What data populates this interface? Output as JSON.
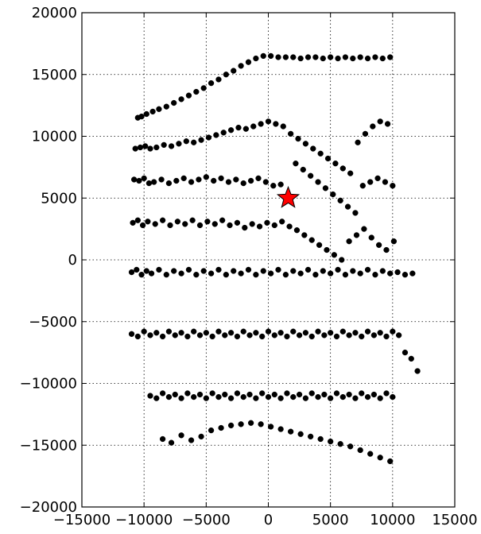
{
  "chart_data": {
    "type": "scatter",
    "title": "",
    "xlabel": "",
    "ylabel": "",
    "xlim": [
      -15000,
      15000
    ],
    "ylim": [
      -20000,
      20000
    ],
    "grid": true,
    "x_ticks": [
      -15000,
      -10000,
      -5000,
      0,
      5000,
      10000,
      15000
    ],
    "x_tick_labels": [
      "−15000",
      "−10000",
      "−5000",
      "0",
      "5000",
      "10000",
      "15000"
    ],
    "y_ticks": [
      -20000,
      -15000,
      -10000,
      -5000,
      0,
      5000,
      10000,
      15000,
      20000
    ],
    "y_tick_labels": [
      "−20000",
      "−15000",
      "−10000",
      "−5000",
      "0",
      "5000",
      "10000",
      "15000",
      "20000"
    ],
    "series": [
      {
        "marker": "circle",
        "color": "#000000",
        "x": [
          -10500,
          -10200,
          -9800,
          -9300,
          -8800,
          -8200,
          -7600,
          -7000,
          -6400,
          -5800,
          -5200,
          -4600,
          -4000,
          -3400,
          -2800,
          -2200,
          -1600,
          -1000,
          -400,
          200,
          800,
          1400,
          2000,
          2600,
          3200,
          3800,
          4400,
          5000,
          5600,
          6200,
          6800,
          7400,
          8000,
          8600,
          9200,
          9800,
          -10700,
          -10300,
          -9900,
          -9500,
          -9000,
          -8400,
          -7800,
          -7200,
          -6600,
          -6000,
          -5400,
          -4800,
          -4200,
          -3600,
          -3000,
          -2400,
          -1800,
          -1200,
          -600,
          0,
          600,
          1200,
          1800,
          2400,
          3000,
          3600,
          4200,
          4800,
          5400,
          6000,
          6600,
          7200,
          7800,
          8400,
          9000,
          9600,
          -10800,
          -10400,
          -10000,
          -9600,
          -9200,
          -8600,
          -8000,
          -7400,
          -6800,
          -6200,
          -5600,
          -5000,
          -4400,
          -3800,
          -3200,
          -2600,
          -2000,
          -1400,
          -800,
          -200,
          400,
          1000,
          2200,
          2800,
          3400,
          4000,
          4600,
          5200,
          5800,
          6400,
          7000,
          7600,
          8200,
          8800,
          9400,
          10000,
          -10900,
          -10500,
          -10100,
          -9700,
          -9100,
          -8500,
          -7900,
          -7300,
          -6700,
          -6100,
          -5500,
          -4900,
          -4300,
          -3700,
          -3100,
          -2500,
          -1900,
          -1300,
          -700,
          -100,
          500,
          1100,
          1700,
          2300,
          2900,
          3500,
          4100,
          4700,
          5300,
          5900,
          6500,
          7100,
          7700,
          8300,
          8900,
          9500,
          10100,
          -11000,
          -10600,
          -10200,
          -9800,
          -9400,
          -8800,
          -8200,
          -7600,
          -7000,
          -6400,
          -5800,
          -5200,
          -4600,
          -4000,
          -3400,
          -2800,
          -2200,
          -1600,
          -1000,
          -400,
          200,
          800,
          1400,
          2000,
          2600,
          3200,
          3800,
          4400,
          5000,
          5600,
          6200,
          6800,
          7400,
          8000,
          8600,
          9200,
          9800,
          10400,
          11000,
          11600,
          -11000,
          -10500,
          -10000,
          -9500,
          -9000,
          -8500,
          -8000,
          -7500,
          -7000,
          -6500,
          -6000,
          -5500,
          -5000,
          -4500,
          -4000,
          -3500,
          -3000,
          -2500,
          -2000,
          -1500,
          -1000,
          -500,
          0,
          500,
          1000,
          1500,
          2000,
          2500,
          3000,
          3500,
          4000,
          4500,
          5000,
          5500,
          6000,
          6500,
          7000,
          7500,
          8000,
          8500,
          9000,
          9500,
          10000,
          10500,
          11000,
          11500,
          12000,
          -9500,
          -9000,
          -8500,
          -8000,
          -7500,
          -7000,
          -6500,
          -6000,
          -5500,
          -5000,
          -4500,
          -4000,
          -3500,
          -3000,
          -2500,
          -2000,
          -1500,
          -1000,
          -500,
          0,
          500,
          1000,
          1500,
          2000,
          2500,
          3000,
          3500,
          4000,
          4500,
          5000,
          5500,
          6000,
          6500,
          7000,
          7500,
          8000,
          8500,
          9000,
          9500,
          10000,
          -8500,
          -7800,
          -7000,
          -6200,
          -5400,
          -4600,
          -3800,
          -3000,
          -2200,
          -1400,
          -600,
          200,
          1000,
          1800,
          2600,
          3400,
          4200,
          5000,
          5800,
          6600,
          7400,
          8200,
          9000,
          9800
        ],
        "y": [
          11500,
          11600,
          11800,
          12000,
          12200,
          12400,
          12700,
          13000,
          13300,
          13600,
          13900,
          14300,
          14600,
          15000,
          15300,
          15700,
          16000,
          16300,
          16500,
          16500,
          16400,
          16400,
          16400,
          16300,
          16400,
          16400,
          16300,
          16400,
          16300,
          16400,
          16300,
          16400,
          16300,
          16400,
          16300,
          16400,
          9000,
          9100,
          9200,
          9000,
          9100,
          9300,
          9200,
          9400,
          9600,
          9500,
          9700,
          9900,
          10100,
          10300,
          10500,
          10700,
          10600,
          10800,
          11000,
          11200,
          11000,
          10800,
          10200,
          9800,
          9400,
          9000,
          8600,
          8200,
          7800,
          7400,
          7000,
          9500,
          10200,
          10800,
          11200,
          11000,
          6500,
          6400,
          6600,
          6200,
          6300,
          6500,
          6200,
          6400,
          6600,
          6300,
          6500,
          6700,
          6400,
          6600,
          6300,
          6500,
          6200,
          6400,
          6600,
          6300,
          6000,
          6100,
          7800,
          7300,
          6800,
          6300,
          5800,
          5300,
          4800,
          4300,
          3800,
          6000,
          6300,
          6600,
          6300,
          6000,
          3000,
          3200,
          2800,
          3100,
          2900,
          3200,
          2800,
          3100,
          2900,
          3200,
          2800,
          3100,
          2900,
          3200,
          2800,
          3000,
          2600,
          2900,
          2700,
          3000,
          2800,
          3100,
          2700,
          2400,
          2000,
          1600,
          1200,
          800,
          400,
          0,
          1500,
          2000,
          2500,
          1800,
          1200,
          800,
          1500,
          -1000,
          -800,
          -1200,
          -900,
          -1100,
          -800,
          -1200,
          -900,
          -1100,
          -800,
          -1200,
          -900,
          -1100,
          -800,
          -1200,
          -900,
          -1100,
          -800,
          -1200,
          -900,
          -1100,
          -800,
          -1200,
          -900,
          -1100,
          -800,
          -1200,
          -900,
          -1100,
          -800,
          -1200,
          -900,
          -1100,
          -800,
          -1200,
          -900,
          -1100,
          -1000,
          -1200,
          -1100,
          -6000,
          -6200,
          -5800,
          -6100,
          -5900,
          -6200,
          -5800,
          -6100,
          -5900,
          -6200,
          -5800,
          -6100,
          -5900,
          -6200,
          -5800,
          -6100,
          -5900,
          -6200,
          -5800,
          -6100,
          -5900,
          -6200,
          -5800,
          -6100,
          -5900,
          -6200,
          -5800,
          -6100,
          -5900,
          -6200,
          -5800,
          -6100,
          -5900,
          -6200,
          -5800,
          -6100,
          -5900,
          -6200,
          -5800,
          -6100,
          -5900,
          -6200,
          -5800,
          -6100,
          -7500,
          -8000,
          -9000,
          -11000,
          -11200,
          -10800,
          -11100,
          -10900,
          -11200,
          -10800,
          -11100,
          -10900,
          -11200,
          -10800,
          -11100,
          -10900,
          -11200,
          -10800,
          -11100,
          -10900,
          -11200,
          -10800,
          -11100,
          -10900,
          -11200,
          -10800,
          -11100,
          -10900,
          -11200,
          -10800,
          -11100,
          -10900,
          -11200,
          -10800,
          -11100,
          -10900,
          -11200,
          -10800,
          -11100,
          -10900,
          -11200,
          -10800,
          -11100,
          -14500,
          -14800,
          -14200,
          -14600,
          -14300,
          -13800,
          -13600,
          -13400,
          -13300,
          -13200,
          -13300,
          -13500,
          -13700,
          -13900,
          -14100,
          -14300,
          -14500,
          -14700,
          -14900,
          -15100,
          -15400,
          -15700,
          -16000,
          -16300
        ]
      },
      {
        "marker": "star",
        "color": "#ff0000",
        "x": [
          1600
        ],
        "y": [
          5000
        ]
      }
    ]
  }
}
